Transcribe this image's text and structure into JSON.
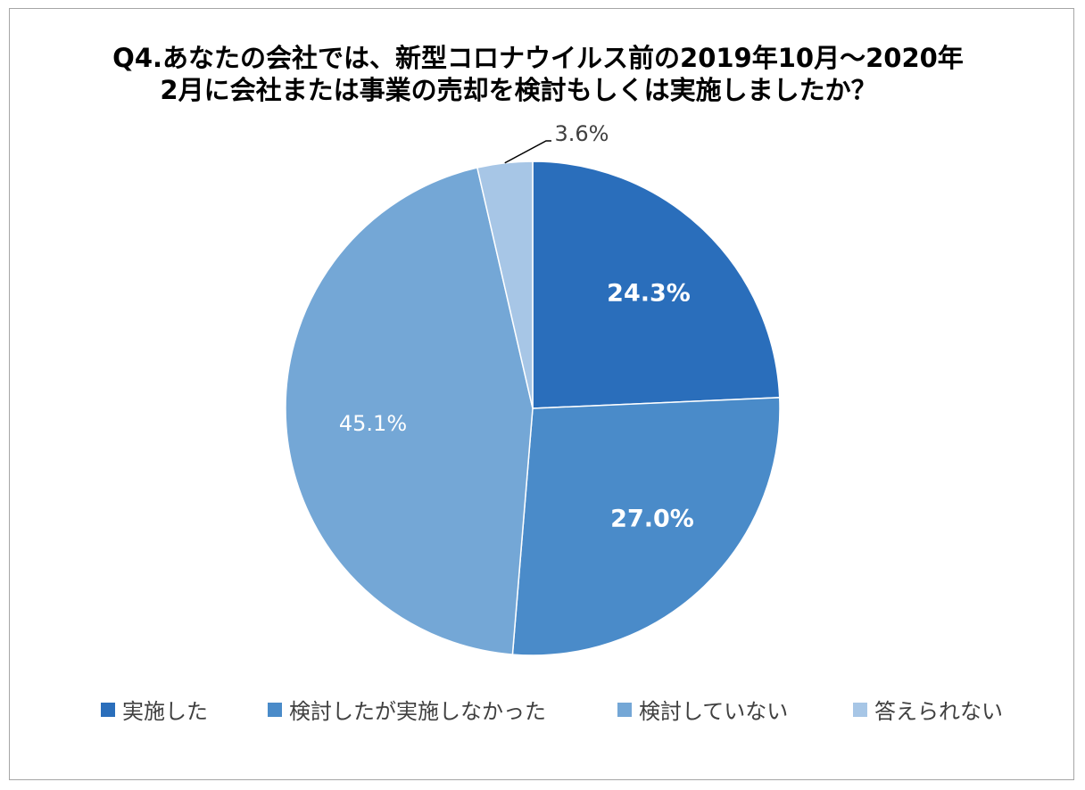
{
  "chart_data": {
    "type": "pie",
    "title_lines": [
      "Q4.あなたの会社では、新型コロナウイルス前の2019年10月～2020年",
      "2月に会社または事業の売却を検討もしくは実施しましたか？"
    ],
    "slices": [
      {
        "name": "実施した",
        "value": 24.3,
        "label": "24.3%",
        "color": "#2a6ebb",
        "label_color": "#ffffff",
        "label_bold": true
      },
      {
        "name": "検討したが実施しなかった",
        "value": 27.0,
        "label": "27.0%",
        "color": "#4a8bc9",
        "label_color": "#ffffff",
        "label_bold": true
      },
      {
        "name": "検討していない",
        "value": 45.1,
        "label": "45.1%",
        "color": "#74a7d6",
        "label_color": "#ffffff",
        "label_bold": false
      },
      {
        "name": "答えられない",
        "value": 3.6,
        "label": "3.6%",
        "color": "#a7c6e6",
        "label_color": "#404040",
        "label_bold": false
      }
    ],
    "start_angle": "12 o'clock",
    "direction": "clockwise",
    "legend_position": "bottom"
  }
}
